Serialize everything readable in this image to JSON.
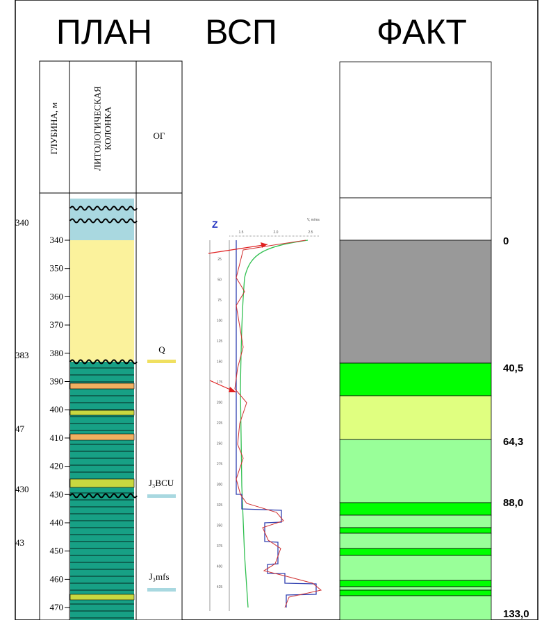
{
  "titles": {
    "plan": "ПЛАН",
    "vsp": "ВСП",
    "fact": "ФАКТ"
  },
  "plan": {
    "columns": [
      [
        "ГЛУБИНА, м"
      ],
      [
        "ЛИТОЛОГИЧЕСКАЯ",
        "КОЛОНКА"
      ],
      [
        "ОГ"
      ]
    ],
    "depth_ticks": [
      "340",
      "350",
      "360",
      "370",
      "380",
      "390",
      "400",
      "410",
      "420",
      "430",
      "440",
      "450",
      "460",
      "470"
    ],
    "side_labels": [
      "340",
      "383",
      "47",
      "430",
      "43"
    ],
    "horizons": [
      "Q",
      "J₃BCU",
      "J₃mfs"
    ]
  },
  "vsp": {
    "axis": "Z",
    "velocity_label": "V, m/ms",
    "velocity_ticks": [
      "1.5",
      "2.0",
      "2.5"
    ],
    "depth_ticks": [
      "25",
      "50",
      "75",
      "100",
      "125",
      "150",
      "175",
      "200",
      "225",
      "250",
      "275",
      "300",
      "325",
      "350",
      "375",
      "400",
      "425"
    ]
  },
  "fact": {
    "labels": [
      "0",
      "40,5",
      "64,3",
      "88,0",
      "133,0"
    ]
  }
}
